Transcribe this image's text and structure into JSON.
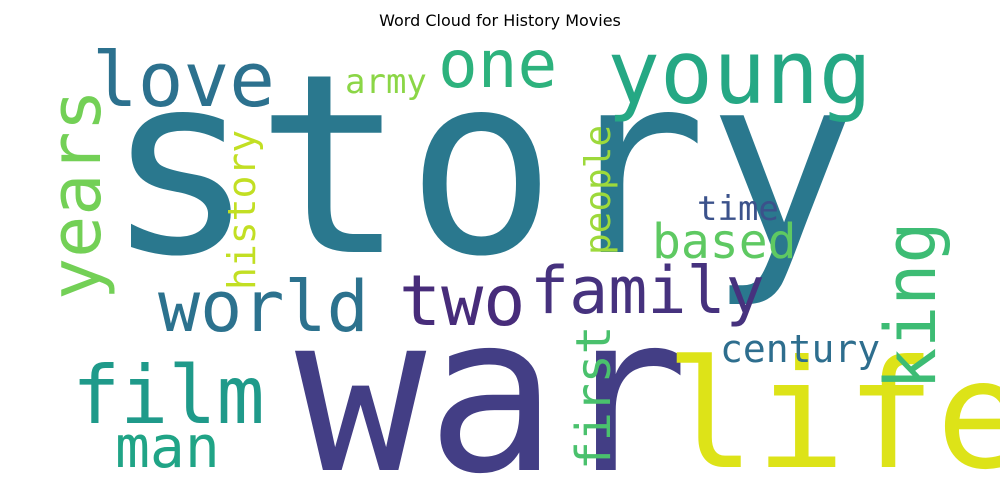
{
  "title": "Word Cloud for History Movies",
  "words": [
    {
      "id": "story",
      "text": "story",
      "color": "#2a788e"
    },
    {
      "id": "war",
      "text": "war",
      "color": "#433e85"
    },
    {
      "id": "life",
      "text": "life",
      "color": "#dde318"
    },
    {
      "id": "young",
      "text": "young",
      "color": "#25a884"
    },
    {
      "id": "one",
      "text": "one",
      "color": "#2db27d"
    },
    {
      "id": "love",
      "text": "love",
      "color": "#2c718e"
    },
    {
      "id": "army",
      "text": "army",
      "color": "#8bd646"
    },
    {
      "id": "years",
      "text": "years",
      "color": "#73d056"
    },
    {
      "id": "history",
      "text": "history",
      "color": "#c2df23"
    },
    {
      "id": "people",
      "text": "people",
      "color": "#9dd93b"
    },
    {
      "id": "time",
      "text": "time",
      "color": "#3b528b"
    },
    {
      "id": "based",
      "text": "based",
      "color": "#5ec962"
    },
    {
      "id": "world",
      "text": "world",
      "color": "#2c728e"
    },
    {
      "id": "two",
      "text": "two",
      "color": "#472c7a"
    },
    {
      "id": "family",
      "text": "family",
      "color": "#46327e"
    },
    {
      "id": "king",
      "text": "king",
      "color": "#3dbc74"
    },
    {
      "id": "film",
      "text": "film",
      "color": "#1f9a8a"
    },
    {
      "id": "century",
      "text": "century",
      "color": "#2e6e8e"
    },
    {
      "id": "first",
      "text": "first",
      "color": "#4ac16d"
    },
    {
      "id": "man",
      "text": "man",
      "color": "#20a486"
    }
  ]
}
